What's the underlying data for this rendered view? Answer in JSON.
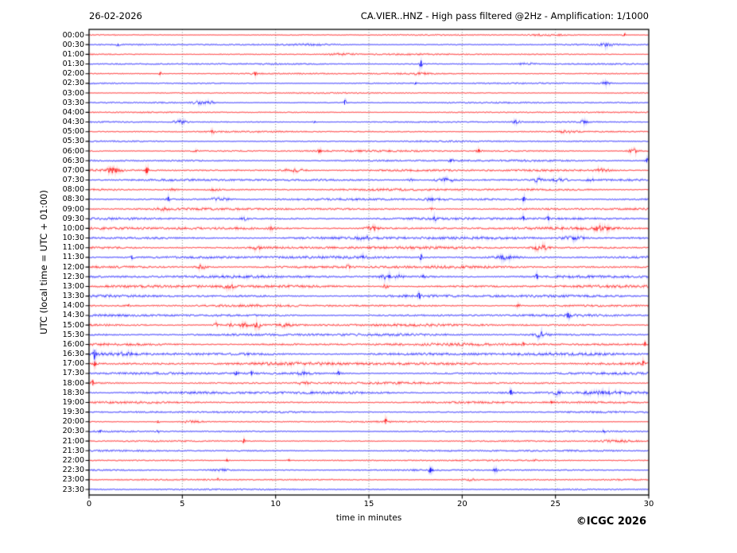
{
  "header": {
    "date": "26-02-2026",
    "station_title": "CA.VIER..HNZ - High pass filtered @2Hz - Amplification: 1/1000"
  },
  "footer": {
    "copyright": "©ICGC 2026"
  },
  "chart_data": {
    "type": "line",
    "subtype": "helicorder-seismogram",
    "title": "CA.VIER..HNZ - High pass filtered @2Hz - Amplification: 1/1000",
    "subtitle": "26-02-2026",
    "xlabel": "time in minutes",
    "ylabel": "UTC (local time = UTC + 01:00)",
    "x_range": [
      0,
      30
    ],
    "x_ticks": [
      0,
      5,
      10,
      15,
      20,
      25,
      30
    ],
    "grid_minutes": [
      5,
      10,
      15,
      20,
      25
    ],
    "grid": "dotted-vertical",
    "legend": "none",
    "colors": {
      "trace_even": "#ff0000",
      "trace_odd": "#0000ff",
      "axis": "#000000"
    },
    "rows": [
      {
        "label": "00:00",
        "color": "red",
        "noise": 0.45,
        "events": [
          {
            "t": 24.5,
            "a": 0.8,
            "w": 1.5
          },
          {
            "t": 28.7,
            "a": 1.5,
            "w": 0.15
          }
        ]
      },
      {
        "label": "00:30",
        "color": "blue",
        "noise": 0.55,
        "events": [
          {
            "t": 1.55,
            "a": 1.5,
            "w": 0.12
          },
          {
            "t": 12.0,
            "a": 0.8,
            "w": 2.0
          },
          {
            "t": 27.7,
            "a": 1.8,
            "w": 0.5
          }
        ]
      },
      {
        "label": "01:00",
        "color": "red",
        "noise": 0.6,
        "events": [
          {
            "t": 13.5,
            "a": 0.9,
            "w": 1.0
          }
        ]
      },
      {
        "label": "01:30",
        "color": "blue",
        "noise": 0.6,
        "events": [
          {
            "t": 17.8,
            "a": 4.5,
            "w": 0.12
          },
          {
            "t": 23.5,
            "a": 1.2,
            "w": 0.6
          }
        ]
      },
      {
        "label": "02:00",
        "color": "red",
        "noise": 0.6,
        "events": [
          {
            "t": 3.8,
            "a": 1.8,
            "w": 0.12
          },
          {
            "t": 8.9,
            "a": 2.2,
            "w": 0.15
          },
          {
            "t": 17.5,
            "a": 0.9,
            "w": 1.0
          }
        ]
      },
      {
        "label": "02:30",
        "color": "blue",
        "noise": 0.55,
        "events": [
          {
            "t": 17.5,
            "a": 1.3,
            "w": 0.1
          },
          {
            "t": 27.7,
            "a": 1.8,
            "w": 0.4
          }
        ]
      },
      {
        "label": "03:00",
        "color": "red",
        "noise": 0.5,
        "events": []
      },
      {
        "label": "03:30",
        "color": "blue",
        "noise": 0.55,
        "events": [
          {
            "t": 5.9,
            "a": 1.6,
            "w": 0.5
          },
          {
            "t": 6.5,
            "a": 1.5,
            "w": 0.3
          },
          {
            "t": 13.7,
            "a": 3.2,
            "w": 0.12
          }
        ]
      },
      {
        "label": "04:00",
        "color": "red",
        "noise": 0.5,
        "events": []
      },
      {
        "label": "04:30",
        "color": "blue",
        "noise": 0.55,
        "events": [
          {
            "t": 4.9,
            "a": 2.2,
            "w": 0.5
          },
          {
            "t": 12.1,
            "a": 1.2,
            "w": 0.15
          },
          {
            "t": 22.9,
            "a": 1.8,
            "w": 0.3
          },
          {
            "t": 26.5,
            "a": 1.8,
            "w": 0.25
          }
        ]
      },
      {
        "label": "05:00",
        "color": "red",
        "noise": 0.6,
        "events": [
          {
            "t": 6.6,
            "a": 1.5,
            "w": 0.2
          },
          {
            "t": 25.6,
            "a": 1.2,
            "w": 0.7
          }
        ]
      },
      {
        "label": "05:30",
        "color": "blue",
        "noise": 0.6,
        "events": []
      },
      {
        "label": "06:00",
        "color": "red",
        "noise": 0.8,
        "events": [
          {
            "t": 5.7,
            "a": 1.2,
            "w": 0.2
          },
          {
            "t": 12.35,
            "a": 1.8,
            "w": 0.12
          },
          {
            "t": 20.9,
            "a": 2.2,
            "w": 0.15
          },
          {
            "t": 29.2,
            "a": 2.4,
            "w": 0.4
          }
        ]
      },
      {
        "label": "06:30",
        "color": "blue",
        "noise": 0.8,
        "events": [
          {
            "t": 19.4,
            "a": 2.2,
            "w": 0.15
          },
          {
            "t": 29.9,
            "a": 2.6,
            "w": 0.12
          }
        ]
      },
      {
        "label": "07:00",
        "color": "red",
        "noise": 0.9,
        "events": [
          {
            "t": 1.3,
            "a": 3.2,
            "w": 0.5
          },
          {
            "t": 3.1,
            "a": 3.8,
            "w": 0.15
          },
          {
            "t": 11.0,
            "a": 1.8,
            "w": 0.8
          },
          {
            "t": 27.5,
            "a": 1.8,
            "w": 0.6
          }
        ]
      },
      {
        "label": "07:30",
        "color": "blue",
        "noise": 0.9,
        "events": [
          {
            "t": 17.2,
            "a": 1.3,
            "w": 0.3
          },
          {
            "t": 19.1,
            "a": 2.0,
            "w": 0.8
          },
          {
            "t": 24.0,
            "a": 2.2,
            "w": 0.4
          },
          {
            "t": 25.2,
            "a": 2.2,
            "w": 0.5
          },
          {
            "t": 26.9,
            "a": 1.5,
            "w": 0.3
          }
        ]
      },
      {
        "label": "08:00",
        "color": "red",
        "noise": 1.0,
        "events": [
          {
            "t": 4.5,
            "a": 1.2,
            "w": 0.3
          },
          {
            "t": 6.8,
            "a": 1.2,
            "w": 0.3
          }
        ]
      },
      {
        "label": "08:30",
        "color": "blue",
        "noise": 0.95,
        "events": [
          {
            "t": 4.25,
            "a": 2.8,
            "w": 0.15
          },
          {
            "t": 7.0,
            "a": 1.5,
            "w": 0.8
          },
          {
            "t": 18.5,
            "a": 1.4,
            "w": 0.7
          },
          {
            "t": 23.3,
            "a": 2.8,
            "w": 0.12
          }
        ]
      },
      {
        "label": "09:00",
        "color": "red",
        "noise": 1.0,
        "events": [
          {
            "t": 4.0,
            "a": 1.3,
            "w": 0.5
          },
          {
            "t": 18.4,
            "a": 1.3,
            "w": 0.2
          }
        ]
      },
      {
        "label": "09:30",
        "color": "blue",
        "noise": 1.0,
        "events": [
          {
            "t": 8.3,
            "a": 1.4,
            "w": 0.3
          },
          {
            "t": 18.5,
            "a": 2.0,
            "w": 0.2
          },
          {
            "t": 23.3,
            "a": 2.8,
            "w": 0.15
          },
          {
            "t": 24.6,
            "a": 2.2,
            "w": 0.15
          }
        ]
      },
      {
        "label": "10:00",
        "color": "red",
        "noise": 1.15,
        "events": [
          {
            "t": 9.8,
            "a": 1.8,
            "w": 0.2
          },
          {
            "t": 15.2,
            "a": 2.8,
            "w": 0.5
          },
          {
            "t": 27.5,
            "a": 2.6,
            "w": 0.6
          }
        ]
      },
      {
        "label": "10:30",
        "color": "blue",
        "noise": 1.2,
        "events": [
          {
            "t": 14.8,
            "a": 1.5,
            "w": 0.5
          },
          {
            "t": 26.0,
            "a": 2.0,
            "w": 1.0
          }
        ]
      },
      {
        "label": "11:00",
        "color": "red",
        "noise": 1.2,
        "events": [
          {
            "t": 9.0,
            "a": 2.2,
            "w": 0.3
          },
          {
            "t": 24.2,
            "a": 3.6,
            "w": 0.5
          }
        ]
      },
      {
        "label": "11:30",
        "color": "blue",
        "noise": 1.2,
        "events": [
          {
            "t": 2.3,
            "a": 2.4,
            "w": 0.15
          },
          {
            "t": 14.7,
            "a": 1.8,
            "w": 0.2
          },
          {
            "t": 17.8,
            "a": 4.0,
            "w": 0.12
          },
          {
            "t": 22.3,
            "a": 1.8,
            "w": 0.8
          }
        ]
      },
      {
        "label": "12:00",
        "color": "red",
        "noise": 1.2,
        "events": [
          {
            "t": 6.0,
            "a": 2.2,
            "w": 0.4
          },
          {
            "t": 13.9,
            "a": 2.0,
            "w": 0.2
          }
        ]
      },
      {
        "label": "12:30",
        "color": "blue",
        "noise": 1.2,
        "events": [
          {
            "t": 15.9,
            "a": 2.6,
            "w": 0.4
          },
          {
            "t": 16.6,
            "a": 2.0,
            "w": 0.3
          },
          {
            "t": 17.9,
            "a": 1.6,
            "w": 0.15
          },
          {
            "t": 24.0,
            "a": 2.6,
            "w": 0.12
          }
        ]
      },
      {
        "label": "13:00",
        "color": "red",
        "noise": 1.2,
        "events": [
          {
            "t": 7.5,
            "a": 2.2,
            "w": 0.4
          },
          {
            "t": 15.9,
            "a": 2.4,
            "w": 0.2
          }
        ]
      },
      {
        "label": "13:30",
        "color": "blue",
        "noise": 1.15,
        "events": [
          {
            "t": 17.7,
            "a": 3.8,
            "w": 0.12
          }
        ]
      },
      {
        "label": "14:00",
        "color": "red",
        "noise": 1.0,
        "events": [
          {
            "t": 2.1,
            "a": 1.5,
            "w": 0.12
          },
          {
            "t": 23.0,
            "a": 1.5,
            "w": 0.2
          }
        ]
      },
      {
        "label": "14:30",
        "color": "blue",
        "noise": 1.0,
        "events": [
          {
            "t": 25.7,
            "a": 2.6,
            "w": 0.12
          }
        ]
      },
      {
        "label": "15:00",
        "color": "red",
        "noise": 1.1,
        "events": [
          {
            "t": 6.8,
            "a": 2.8,
            "w": 0.25
          },
          {
            "t": 7.6,
            "a": 2.4,
            "w": 0.2
          },
          {
            "t": 8.3,
            "a": 3.6,
            "w": 0.25
          },
          {
            "t": 9.0,
            "a": 3.8,
            "w": 0.3
          },
          {
            "t": 10.5,
            "a": 1.5,
            "w": 0.5
          }
        ]
      },
      {
        "label": "15:30",
        "color": "blue",
        "noise": 1.15,
        "events": [
          {
            "t": 24.2,
            "a": 3.4,
            "w": 0.5
          }
        ]
      },
      {
        "label": "16:00",
        "color": "red",
        "noise": 1.2,
        "events": [
          {
            "t": 23.3,
            "a": 2.4,
            "w": 0.12
          },
          {
            "t": 29.8,
            "a": 2.6,
            "w": 0.1
          }
        ]
      },
      {
        "label": "16:30",
        "color": "blue",
        "noise": 1.3,
        "events": [
          {
            "t": 0.3,
            "a": 5.5,
            "w": 0.12
          },
          {
            "t": 2.0,
            "a": 1.5,
            "w": 0.5
          }
        ]
      },
      {
        "label": "17:00",
        "color": "red",
        "noise": 1.4,
        "events": [
          {
            "t": 0.3,
            "a": 2.8,
            "w": 0.1
          },
          {
            "t": 29.7,
            "a": 3.0,
            "w": 0.1
          }
        ]
      },
      {
        "label": "17:30",
        "color": "blue",
        "noise": 1.0,
        "events": [
          {
            "t": 7.9,
            "a": 2.8,
            "w": 0.12
          },
          {
            "t": 8.7,
            "a": 3.2,
            "w": 0.12
          },
          {
            "t": 11.5,
            "a": 1.8,
            "w": 0.4
          },
          {
            "t": 13.4,
            "a": 2.4,
            "w": 0.12
          }
        ]
      },
      {
        "label": "18:00",
        "color": "red",
        "noise": 1.0,
        "events": [
          {
            "t": 0.2,
            "a": 3.8,
            "w": 0.1
          },
          {
            "t": 11.5,
            "a": 1.2,
            "w": 0.5
          }
        ]
      },
      {
        "label": "18:30",
        "color": "blue",
        "noise": 1.1,
        "events": [
          {
            "t": 22.6,
            "a": 3.2,
            "w": 0.12
          },
          {
            "t": 25.0,
            "a": 2.6,
            "w": 0.4
          },
          {
            "t": 27.5,
            "a": 1.5,
            "w": 2.0
          }
        ]
      },
      {
        "label": "19:00",
        "color": "red",
        "noise": 0.9,
        "events": [
          {
            "t": 24.8,
            "a": 1.6,
            "w": 0.12
          }
        ]
      },
      {
        "label": "19:30",
        "color": "blue",
        "noise": 0.7,
        "events": []
      },
      {
        "label": "20:00",
        "color": "red",
        "noise": 0.6,
        "events": [
          {
            "t": 3.7,
            "a": 1.8,
            "w": 0.1
          },
          {
            "t": 5.5,
            "a": 1.2,
            "w": 0.8
          },
          {
            "t": 15.9,
            "a": 3.4,
            "w": 0.1
          }
        ]
      },
      {
        "label": "20:30",
        "color": "blue",
        "noise": 0.6,
        "events": [
          {
            "t": 0.6,
            "a": 2.0,
            "w": 0.1
          },
          {
            "t": 3.7,
            "a": 1.2,
            "w": 0.1
          },
          {
            "t": 27.6,
            "a": 1.2,
            "w": 0.1
          }
        ]
      },
      {
        "label": "21:00",
        "color": "red",
        "noise": 0.6,
        "events": [
          {
            "t": 8.3,
            "a": 2.6,
            "w": 0.12
          },
          {
            "t": 28.3,
            "a": 1.0,
            "w": 1.2
          }
        ]
      },
      {
        "label": "21:30",
        "color": "blue",
        "noise": 0.7,
        "events": []
      },
      {
        "label": "22:00",
        "color": "red",
        "noise": 0.6,
        "events": [
          {
            "t": 7.4,
            "a": 1.8,
            "w": 0.1
          },
          {
            "t": 10.7,
            "a": 1.2,
            "w": 0.1
          },
          {
            "t": 23.9,
            "a": 1.0,
            "w": 0.1
          }
        ]
      },
      {
        "label": "22:30",
        "color": "blue",
        "noise": 0.6,
        "events": [
          {
            "t": 7.0,
            "a": 1.2,
            "w": 0.8
          },
          {
            "t": 18.3,
            "a": 3.0,
            "w": 0.15
          },
          {
            "t": 21.8,
            "a": 2.2,
            "w": 0.2
          }
        ]
      },
      {
        "label": "23:00",
        "color": "red",
        "noise": 0.6,
        "events": [
          {
            "t": 6.9,
            "a": 1.4,
            "w": 0.1
          },
          {
            "t": 20.4,
            "a": 1.0,
            "w": 0.5
          }
        ]
      },
      {
        "label": "23:30",
        "color": "blue",
        "noise": 0.55,
        "events": []
      }
    ]
  }
}
